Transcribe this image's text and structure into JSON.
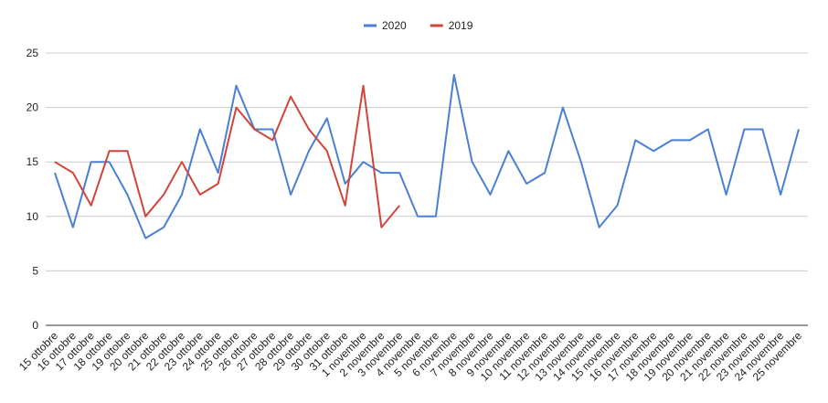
{
  "chart_data": {
    "type": "line",
    "categories": [
      "15 ottobre",
      "16 ottobre",
      "17 ottobre",
      "18 ottobre",
      "19 ottobre",
      "20 ottobre",
      "21 ottobre",
      "22 ottobre",
      "23 ottobre",
      "24 ottobre",
      "25 ottobre",
      "26 ottobre",
      "27 ottobre",
      "28 ottobre",
      "29 ottobre",
      "30 ottobre",
      "31 ottobre",
      "1 novembre",
      "2 novembre",
      "3 novembre",
      "4 novembre",
      "5 novembre",
      "6 novembre",
      "7 novembre",
      "8 novembre",
      "9 novembre",
      "10 novembre",
      "11 novembre",
      "12 novembre",
      "13 novembre",
      "14 novembre",
      "15 novembre",
      "16 novembre",
      "17 novembre",
      "18 novembre",
      "19 novembre",
      "20 novembre",
      "21 novembre",
      "22 novembre",
      "23 novembre",
      "24 novembre",
      "25 novembre"
    ],
    "series": [
      {
        "name": "2020",
        "color": "#4a7fd4",
        "values": [
          14,
          9,
          15,
          15,
          12,
          8,
          9,
          12,
          18,
          14,
          22,
          18,
          18,
          12,
          16,
          19,
          13,
          15,
          14,
          14,
          10,
          10,
          23,
          15,
          12,
          16,
          13,
          14,
          20,
          15,
          9,
          11,
          17,
          16,
          17,
          17,
          18,
          12,
          18,
          18,
          12,
          18
        ]
      },
      {
        "name": "2019",
        "color": "#d1443a",
        "values": [
          15,
          14,
          11,
          16,
          16,
          10,
          12,
          15,
          12,
          13,
          20,
          18,
          17,
          21,
          18,
          16,
          11,
          22,
          9,
          11,
          null,
          null,
          null,
          null,
          null,
          null,
          null,
          null,
          null,
          null,
          null,
          null,
          null,
          null,
          null,
          null,
          null,
          null,
          null,
          null,
          null,
          null
        ]
      }
    ],
    "ylim": [
      0,
      25
    ],
    "yticks": [
      0,
      5,
      10,
      15,
      20,
      25
    ],
    "grid": true,
    "legend": "top"
  }
}
